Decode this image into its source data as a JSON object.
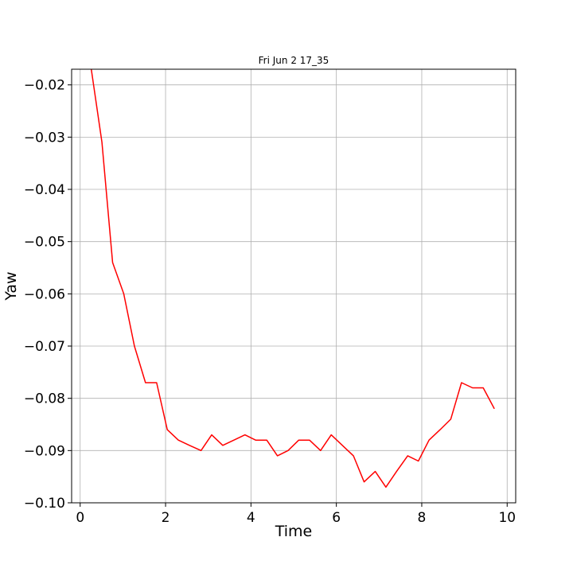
{
  "chart_data": {
    "type": "line",
    "title": "Fri Jun  2 17_35",
    "xlabel": "Time",
    "ylabel": "Yaw",
    "xlim": [
      -0.2,
      10.2
    ],
    "ylim": [
      -0.1,
      -0.017
    ],
    "xticks": [
      0,
      2,
      4,
      6,
      8,
      10
    ],
    "xtick_labels": [
      "0",
      "2",
      "4",
      "6",
      "8",
      "10"
    ],
    "yticks": [
      -0.02,
      -0.03,
      -0.04,
      -0.05,
      -0.06,
      -0.07,
      -0.08,
      -0.09,
      -0.1
    ],
    "ytick_labels": [
      "−0.02",
      "−0.03",
      "−0.04",
      "−0.05",
      "−0.06",
      "−0.07",
      "−0.08",
      "−0.09",
      "−0.10"
    ],
    "grid": true,
    "series": [
      {
        "color": "#ff0000",
        "x": [
          0.26,
          0.51,
          0.76,
          1.02,
          1.27,
          1.53,
          1.79,
          2.04,
          2.3,
          2.56,
          2.83,
          3.08,
          3.34,
          3.6,
          3.86,
          4.11,
          4.37,
          4.62,
          4.87,
          5.12,
          5.37,
          5.63,
          5.88,
          6.14,
          6.4,
          6.65,
          6.91,
          7.16,
          7.41,
          7.67,
          7.92,
          8.17,
          8.43,
          8.68,
          8.93,
          9.19,
          9.44,
          9.7
        ],
        "y": [
          -0.017,
          -0.031,
          -0.054,
          -0.06,
          -0.07,
          -0.077,
          -0.077,
          -0.086,
          -0.088,
          -0.089,
          -0.09,
          -0.087,
          -0.089,
          -0.088,
          -0.087,
          -0.088,
          -0.088,
          -0.091,
          -0.09,
          -0.088,
          -0.088,
          -0.09,
          -0.087,
          -0.089,
          -0.091,
          -0.096,
          -0.094,
          -0.097,
          -0.094,
          -0.091,
          -0.092,
          -0.088,
          -0.086,
          -0.084,
          -0.077,
          -0.078,
          -0.078,
          -0.082
        ]
      }
    ]
  }
}
